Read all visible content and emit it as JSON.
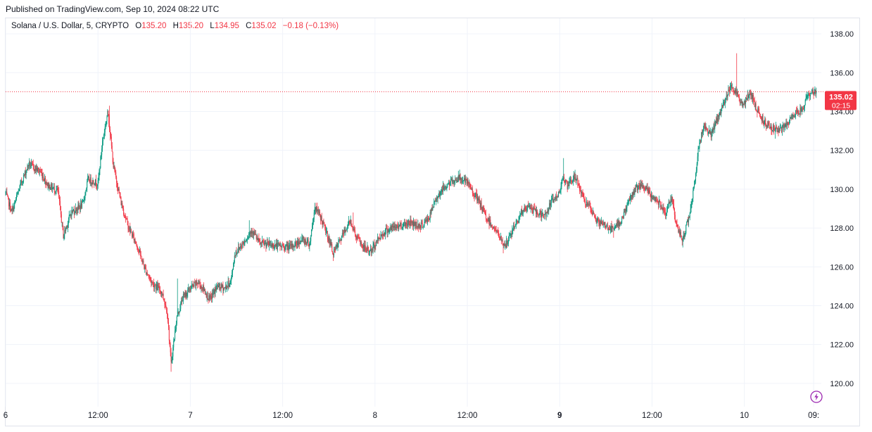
{
  "header": {
    "published": "Published on TradingView.com, Sep 10, 2024 08:22 UTC"
  },
  "legend": {
    "symbol": "Solana / U.S. Dollar, 5, CRYPTO",
    "open_label": "O",
    "open": "135.20",
    "high_label": "H",
    "high": "135.20",
    "low_label": "L",
    "low": "134.95",
    "close_label": "C",
    "close": "135.02",
    "change": "−0.18 (−0.13%)"
  },
  "price_tag": {
    "price": "135.02",
    "countdown": "02:15"
  },
  "icons": {
    "bolt": "lightning-icon"
  },
  "colors": {
    "up": "#089981",
    "down": "#f23645",
    "grid": "#f0f3fa",
    "text": "#131722"
  },
  "chart_data": {
    "type": "candlestick",
    "interval": "5",
    "y_ticks": [
      "138.00",
      "136.00",
      "134.00",
      "132.00",
      "130.00",
      "128.00",
      "126.00",
      "124.00",
      "122.00",
      "120.00"
    ],
    "ylim": [
      118.8,
      138.8
    ],
    "x_ticks": [
      {
        "label": "6",
        "t": 0.0,
        "bold": false
      },
      {
        "label": "12:00",
        "t": 12.0,
        "bold": false
      },
      {
        "label": "7",
        "t": 24.0,
        "bold": false
      },
      {
        "label": "12:00",
        "t": 36.0,
        "bold": false
      },
      {
        "label": "8",
        "t": 48.0,
        "bold": false
      },
      {
        "label": "12:00",
        "t": 60.0,
        "bold": false
      },
      {
        "label": "9",
        "t": 72.0,
        "bold": true
      },
      {
        "label": "12:00",
        "t": 84.0,
        "bold": false
      },
      {
        "label": "10",
        "t": 96.0,
        "bold": false
      },
      {
        "label": "09:",
        "t": 105.0,
        "bold": false
      }
    ],
    "xlim": [
      0.0,
      106.0
    ],
    "last_price": 135.02,
    "keypoints": [
      {
        "t": 0.0,
        "p": 129.8
      },
      {
        "t": 0.8,
        "p": 128.8
      },
      {
        "t": 2.0,
        "p": 130.3
      },
      {
        "t": 3.0,
        "p": 131.3
      },
      {
        "t": 4.5,
        "p": 130.9
      },
      {
        "t": 5.5,
        "p": 130.2
      },
      {
        "t": 6.8,
        "p": 129.9
      },
      {
        "t": 7.5,
        "p": 127.6
      },
      {
        "t": 8.5,
        "p": 128.8
      },
      {
        "t": 10.0,
        "p": 129.2
      },
      {
        "t": 10.7,
        "p": 130.5
      },
      {
        "t": 12.0,
        "p": 130.3
      },
      {
        "t": 12.6,
        "p": 132.5
      },
      {
        "t": 13.3,
        "p": 134.0
      },
      {
        "t": 14.0,
        "p": 131.2
      },
      {
        "t": 15.0,
        "p": 129.3
      },
      {
        "t": 16.0,
        "p": 128.0
      },
      {
        "t": 17.0,
        "p": 127.2
      },
      {
        "t": 18.0,
        "p": 126.0
      },
      {
        "t": 19.0,
        "p": 125.2
      },
      {
        "t": 20.3,
        "p": 124.7
      },
      {
        "t": 21.0,
        "p": 123.7
      },
      {
        "t": 21.5,
        "p": 121.0
      },
      {
        "t": 22.2,
        "p": 123.3
      },
      {
        "t": 23.0,
        "p": 124.4
      },
      {
        "t": 24.0,
        "p": 124.9
      },
      {
        "t": 25.0,
        "p": 125.2
      },
      {
        "t": 25.8,
        "p": 124.8
      },
      {
        "t": 26.5,
        "p": 124.3
      },
      {
        "t": 27.5,
        "p": 125.0
      },
      {
        "t": 28.5,
        "p": 124.9
      },
      {
        "t": 29.3,
        "p": 125.3
      },
      {
        "t": 29.8,
        "p": 126.7
      },
      {
        "t": 31.0,
        "p": 127.3
      },
      {
        "t": 32.0,
        "p": 127.9
      },
      {
        "t": 33.0,
        "p": 127.2
      },
      {
        "t": 35.0,
        "p": 127.1
      },
      {
        "t": 37.0,
        "p": 127.0
      },
      {
        "t": 38.5,
        "p": 127.4
      },
      {
        "t": 39.5,
        "p": 127.2
      },
      {
        "t": 40.2,
        "p": 129.1
      },
      {
        "t": 41.0,
        "p": 128.5
      },
      {
        "t": 42.0,
        "p": 127.4
      },
      {
        "t": 42.6,
        "p": 126.7
      },
      {
        "t": 43.5,
        "p": 127.4
      },
      {
        "t": 44.8,
        "p": 128.4
      },
      {
        "t": 45.5,
        "p": 127.6
      },
      {
        "t": 46.5,
        "p": 127.0
      },
      {
        "t": 47.5,
        "p": 126.8
      },
      {
        "t": 48.5,
        "p": 127.5
      },
      {
        "t": 49.5,
        "p": 127.9
      },
      {
        "t": 51.0,
        "p": 128.1
      },
      {
        "t": 52.5,
        "p": 128.3
      },
      {
        "t": 54.0,
        "p": 128.1
      },
      {
        "t": 55.0,
        "p": 128.5
      },
      {
        "t": 56.0,
        "p": 129.6
      },
      {
        "t": 57.0,
        "p": 130.1
      },
      {
        "t": 58.0,
        "p": 130.4
      },
      {
        "t": 59.0,
        "p": 130.6
      },
      {
        "t": 60.0,
        "p": 130.3
      },
      {
        "t": 61.0,
        "p": 129.7
      },
      {
        "t": 61.8,
        "p": 129.1
      },
      {
        "t": 62.5,
        "p": 128.5
      },
      {
        "t": 63.5,
        "p": 128.0
      },
      {
        "t": 64.5,
        "p": 127.3
      },
      {
        "t": 65.0,
        "p": 127.1
      },
      {
        "t": 66.0,
        "p": 128.0
      },
      {
        "t": 67.0,
        "p": 128.8
      },
      {
        "t": 68.0,
        "p": 129.1
      },
      {
        "t": 69.0,
        "p": 128.8
      },
      {
        "t": 70.0,
        "p": 128.6
      },
      {
        "t": 71.0,
        "p": 129.4
      },
      {
        "t": 72.0,
        "p": 129.8
      },
      {
        "t": 72.3,
        "p": 130.7
      },
      {
        "t": 73.0,
        "p": 130.1
      },
      {
        "t": 74.0,
        "p": 130.7
      },
      {
        "t": 75.0,
        "p": 129.6
      },
      {
        "t": 76.0,
        "p": 128.9
      },
      {
        "t": 77.0,
        "p": 128.3
      },
      {
        "t": 78.0,
        "p": 128.1
      },
      {
        "t": 79.0,
        "p": 127.9
      },
      {
        "t": 80.0,
        "p": 128.4
      },
      {
        "t": 81.0,
        "p": 129.4
      },
      {
        "t": 82.0,
        "p": 130.1
      },
      {
        "t": 83.0,
        "p": 130.1
      },
      {
        "t": 84.0,
        "p": 129.6
      },
      {
        "t": 85.0,
        "p": 129.3
      },
      {
        "t": 85.8,
        "p": 128.8
      },
      {
        "t": 86.6,
        "p": 129.6
      },
      {
        "t": 87.2,
        "p": 128.0
      },
      {
        "t": 88.0,
        "p": 127.4
      },
      {
        "t": 88.8,
        "p": 128.6
      },
      {
        "t": 89.6,
        "p": 130.5
      },
      {
        "t": 90.0,
        "p": 132.0
      },
      {
        "t": 90.7,
        "p": 133.3
      },
      {
        "t": 91.7,
        "p": 132.8
      },
      {
        "t": 92.5,
        "p": 133.6
      },
      {
        "t": 93.5,
        "p": 134.6
      },
      {
        "t": 94.3,
        "p": 135.4
      },
      {
        "t": 95.0,
        "p": 134.9
      },
      {
        "t": 95.8,
        "p": 134.3
      },
      {
        "t": 96.8,
        "p": 135.0
      },
      {
        "t": 97.5,
        "p": 134.2
      },
      {
        "t": 98.5,
        "p": 133.5
      },
      {
        "t": 99.5,
        "p": 133.2
      },
      {
        "t": 100.5,
        "p": 133.0
      },
      {
        "t": 101.5,
        "p": 133.3
      },
      {
        "t": 102.5,
        "p": 133.9
      },
      {
        "t": 103.5,
        "p": 134.1
      },
      {
        "t": 104.3,
        "p": 134.9
      },
      {
        "t": 105.0,
        "p": 135.0
      }
    ],
    "extremes": [
      {
        "t": 13.5,
        "high": 134.3
      },
      {
        "t": 21.5,
        "low": 120.6
      },
      {
        "t": 22.3,
        "high": 125.4
      },
      {
        "t": 31.7,
        "high": 128.4
      },
      {
        "t": 40.2,
        "high": 129.3
      },
      {
        "t": 42.6,
        "low": 126.3
      },
      {
        "t": 45.2,
        "high": 128.8
      },
      {
        "t": 59.0,
        "high": 130.9
      },
      {
        "t": 64.7,
        "low": 126.7
      },
      {
        "t": 72.5,
        "high": 131.6
      },
      {
        "t": 74.0,
        "high": 131.0
      },
      {
        "t": 79.0,
        "low": 127.5
      },
      {
        "t": 88.0,
        "low": 127.0
      },
      {
        "t": 95.0,
        "high": 137.0
      },
      {
        "t": 100.0,
        "low": 132.6
      }
    ]
  }
}
